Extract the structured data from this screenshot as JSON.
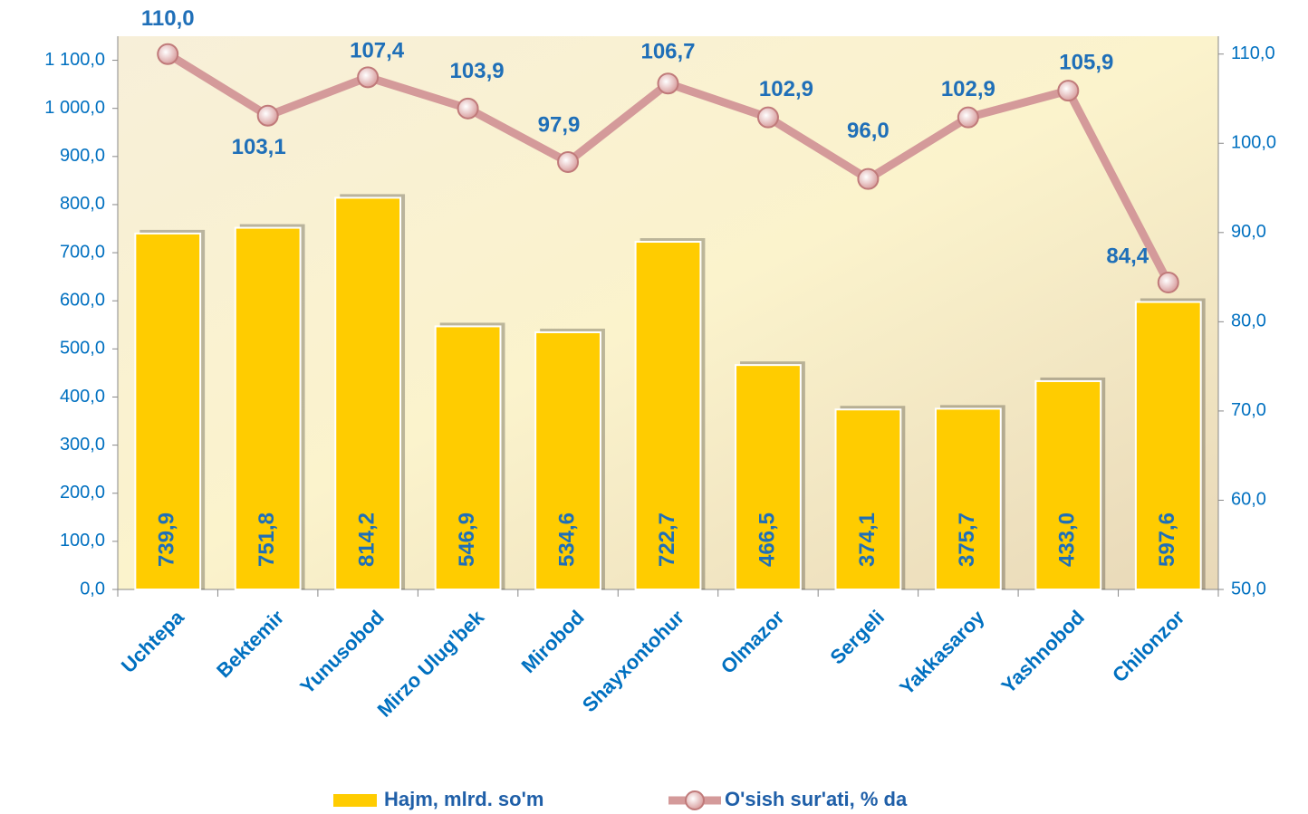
{
  "chart_data": {
    "type": "bar_line",
    "categories": [
      "Uchtepa",
      "Bektemir",
      "Yunusobod",
      "Mirzo Ulug'bek",
      "Mirobod",
      "Shayxontohur",
      "Olmazor",
      "Sergeli",
      "Yakkasaroy",
      "Yashnobod",
      "Chilonzor"
    ],
    "series": [
      {
        "name": "Hajm, mlrd. so'm",
        "color": "#ffcc00",
        "type": "bar",
        "values": [
          739.9,
          751.8,
          814.2,
          546.9,
          534.6,
          722.7,
          466.5,
          374.1,
          375.7,
          433.0,
          597.6
        ],
        "value_labels": [
          "739,9",
          "751,8",
          "814,2",
          "546,9",
          "534,6",
          "722,7",
          "466,5",
          "374,1",
          "375,7",
          "433,0",
          "597,6"
        ]
      },
      {
        "name": "O'sish sur'ati, % da",
        "color": "#d49a9a",
        "type": "line",
        "axis": "y2",
        "values": [
          110.0,
          103.1,
          107.4,
          103.9,
          97.9,
          106.7,
          102.9,
          96.0,
          102.9,
          105.9,
          84.4
        ],
        "value_labels": [
          "110,0",
          "103,1",
          "107,4",
          "103,9",
          "97,9",
          "106,7",
          "102,9",
          "96,0",
          "102,9",
          "105,9",
          "84,4"
        ]
      }
    ],
    "ylim": [
      0,
      1150
    ],
    "yticks": [
      {
        "value": 0,
        "label": "0,0"
      },
      {
        "value": 100,
        "label": "100,0"
      },
      {
        "value": 200,
        "label": "200,0"
      },
      {
        "value": 300,
        "label": "300,0"
      },
      {
        "value": 400,
        "label": "400,0"
      },
      {
        "value": 500,
        "label": "500,0"
      },
      {
        "value": 600,
        "label": "600,0"
      },
      {
        "value": 700,
        "label": "700,0"
      },
      {
        "value": 800,
        "label": "800,0"
      },
      {
        "value": 900,
        "label": "900,0"
      },
      {
        "value": 1000,
        "label": "1 000,0"
      },
      {
        "value": 1100,
        "label": "1 100,0"
      }
    ],
    "y2lim": [
      50,
      112
    ],
    "y2ticks": [
      {
        "value": 50,
        "label": "50,0"
      },
      {
        "value": 60,
        "label": "60,0"
      },
      {
        "value": 70,
        "label": "70,0"
      },
      {
        "value": 80,
        "label": "80,0"
      },
      {
        "value": 90,
        "label": "90,0"
      },
      {
        "value": 100,
        "label": "100,0"
      },
      {
        "value": 110,
        "label": "110,0"
      }
    ],
    "legend": "bottom"
  }
}
